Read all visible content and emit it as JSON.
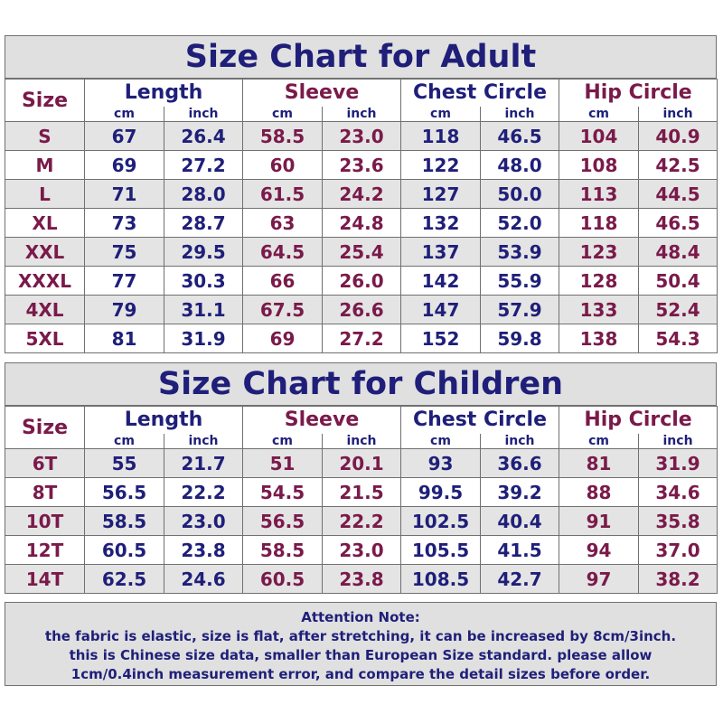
{
  "colors": {
    "navy": "#1f1f7a",
    "maroon": "#7a1a4a",
    "shade": "#e4e4e4",
    "title_bg": "#e0e0e0"
  },
  "adult": {
    "title": "Size Chart for Adult",
    "size_header": "Size",
    "groups": [
      "Length",
      "Sleeve",
      "Chest Circle",
      "Hip Circle"
    ],
    "units": [
      "cm",
      "inch",
      "cm",
      "inch",
      "cm",
      "inch",
      "cm",
      "inch"
    ],
    "rows": [
      {
        "size": "S",
        "values": [
          "67",
          "26.4",
          "58.5",
          "23.0",
          "118",
          "46.5",
          "104",
          "40.9"
        ]
      },
      {
        "size": "M",
        "values": [
          "69",
          "27.2",
          "60",
          "23.6",
          "122",
          "48.0",
          "108",
          "42.5"
        ]
      },
      {
        "size": "L",
        "values": [
          "71",
          "28.0",
          "61.5",
          "24.2",
          "127",
          "50.0",
          "113",
          "44.5"
        ]
      },
      {
        "size": "XL",
        "values": [
          "73",
          "28.7",
          "63",
          "24.8",
          "132",
          "52.0",
          "118",
          "46.5"
        ]
      },
      {
        "size": "XXL",
        "values": [
          "75",
          "29.5",
          "64.5",
          "25.4",
          "137",
          "53.9",
          "123",
          "48.4"
        ]
      },
      {
        "size": "XXXL",
        "values": [
          "77",
          "30.3",
          "66",
          "26.0",
          "142",
          "55.9",
          "128",
          "50.4"
        ]
      },
      {
        "size": "4XL",
        "values": [
          "79",
          "31.1",
          "67.5",
          "26.6",
          "147",
          "57.9",
          "133",
          "52.4"
        ]
      },
      {
        "size": "5XL",
        "values": [
          "81",
          "31.9",
          "69",
          "27.2",
          "152",
          "59.8",
          "138",
          "54.3"
        ]
      }
    ]
  },
  "children": {
    "title": "Size Chart for Children",
    "size_header": "Size",
    "groups": [
      "Length",
      "Sleeve",
      "Chest Circle",
      "Hip Circle"
    ],
    "units": [
      "cm",
      "inch",
      "cm",
      "inch",
      "cm",
      "inch",
      "cm",
      "inch"
    ],
    "rows": [
      {
        "size": "6T",
        "values": [
          "55",
          "21.7",
          "51",
          "20.1",
          "93",
          "36.6",
          "81",
          "31.9"
        ]
      },
      {
        "size": "8T",
        "values": [
          "56.5",
          "22.2",
          "54.5",
          "21.5",
          "99.5",
          "39.2",
          "88",
          "34.6"
        ]
      },
      {
        "size": "10T",
        "values": [
          "58.5",
          "23.0",
          "56.5",
          "22.2",
          "102.5",
          "40.4",
          "91",
          "35.8"
        ]
      },
      {
        "size": "12T",
        "values": [
          "60.5",
          "23.8",
          "58.5",
          "23.0",
          "105.5",
          "41.5",
          "94",
          "37.0"
        ]
      },
      {
        "size": "14T",
        "values": [
          "62.5",
          "24.6",
          "60.5",
          "23.8",
          "108.5",
          "42.7",
          "97",
          "38.2"
        ]
      }
    ]
  },
  "note": {
    "heading": "Attention Note:",
    "lines": [
      "the fabric is elastic, size is flat, after stretching, it can be increased by 8cm/3inch.",
      "this is Chinese size data, smaller than European Size standard. please allow",
      "1cm/0.4inch measurement error, and compare the detail sizes before order."
    ]
  }
}
